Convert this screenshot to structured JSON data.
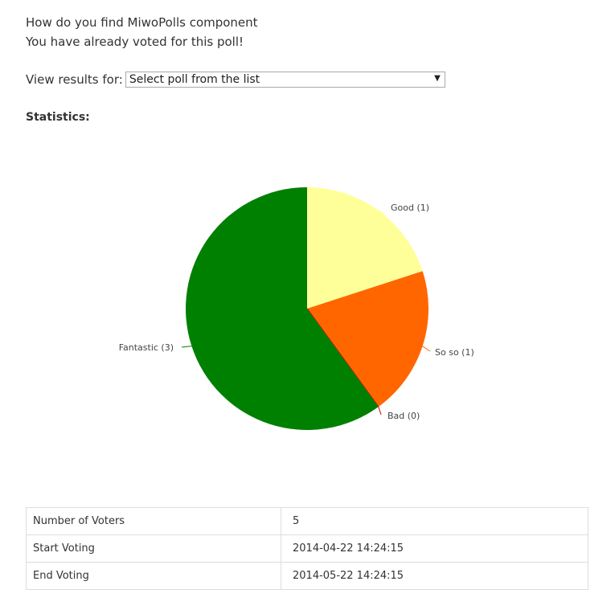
{
  "poll": {
    "title": "How do you find MiwoPolls component",
    "message": "You have already voted for this poll!"
  },
  "view_results": {
    "label": "View results for:",
    "selected": "Select poll from the list"
  },
  "statistics_heading": "Statistics:",
  "chart_data": {
    "type": "pie",
    "title": "",
    "slices": [
      {
        "label": "Good",
        "value": 1,
        "display": "Good  (1)",
        "color": "#ffff99"
      },
      {
        "label": "So so",
        "value": 1,
        "display": "So so (1)",
        "color": "#ff6600"
      },
      {
        "label": "Bad",
        "value": 0,
        "display": "Bad (0)",
        "color": "#cc0000"
      },
      {
        "label": "Fantastic",
        "value": 3,
        "display": "Fantastic (3)",
        "color": "#008000"
      }
    ],
    "legend": "none"
  },
  "stats": {
    "rows": [
      {
        "label": "Number of Voters",
        "value": "5"
      },
      {
        "label": "Start Voting",
        "value": "2014-04-22 14:24:15"
      },
      {
        "label": "End Voting",
        "value": "2014-05-22 14:24:15"
      }
    ]
  }
}
